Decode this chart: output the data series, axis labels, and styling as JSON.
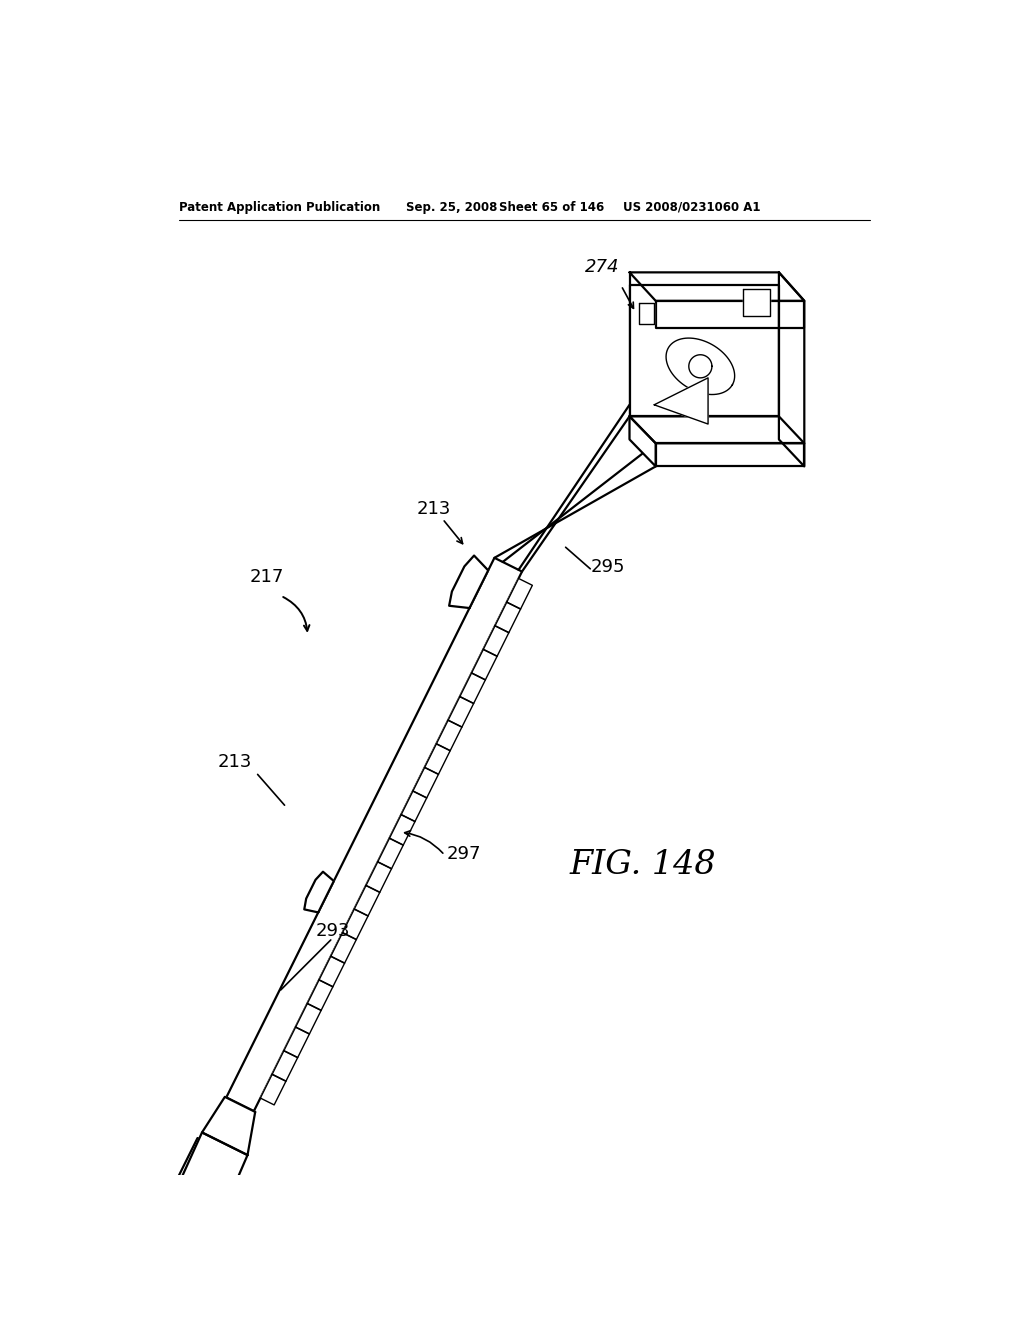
{
  "bg_color": "#ffffff",
  "line_color": "#000000",
  "header_text": "Patent Application Publication",
  "header_date": "Sep. 25, 2008",
  "header_sheet": "Sheet 65 of 146",
  "header_patent": "US 2008/0231060 A1",
  "fig_label": "FIG. 148"
}
